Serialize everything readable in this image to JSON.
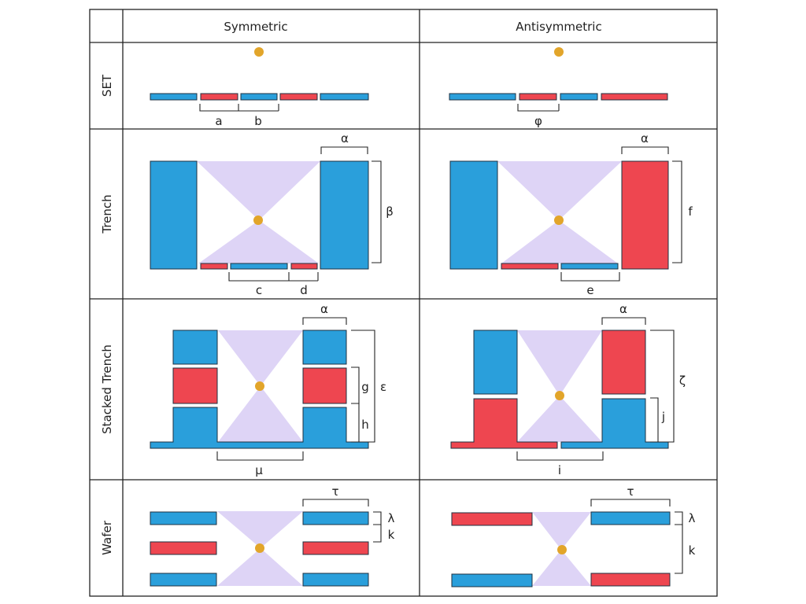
{
  "columns": [
    "Symmetric",
    "Antisymmetric"
  ],
  "rows": [
    "SET",
    "Trench",
    "Stacked Trench",
    "Wafer"
  ],
  "colors": {
    "blue": "#2a9fdb",
    "red": "#ee4650",
    "ion": "#e2a52a",
    "field": "#d8ccf4",
    "outline": "#1f3040"
  },
  "dimensions": {
    "set_sym": [
      "a",
      "b"
    ],
    "set_anti": [
      "φ"
    ],
    "trench_sym": [
      "α",
      "β",
      "c",
      "d"
    ],
    "trench_anti": [
      "α",
      "f",
      "e"
    ],
    "stacked_sym": [
      "α",
      "g",
      "ε",
      "h",
      "μ"
    ],
    "stacked_anti": [
      "α",
      "ζ",
      "j",
      "i"
    ],
    "wafer_sym": [
      "τ",
      "λ",
      "k"
    ],
    "wafer_anti": [
      "τ",
      "λ",
      "k"
    ]
  }
}
